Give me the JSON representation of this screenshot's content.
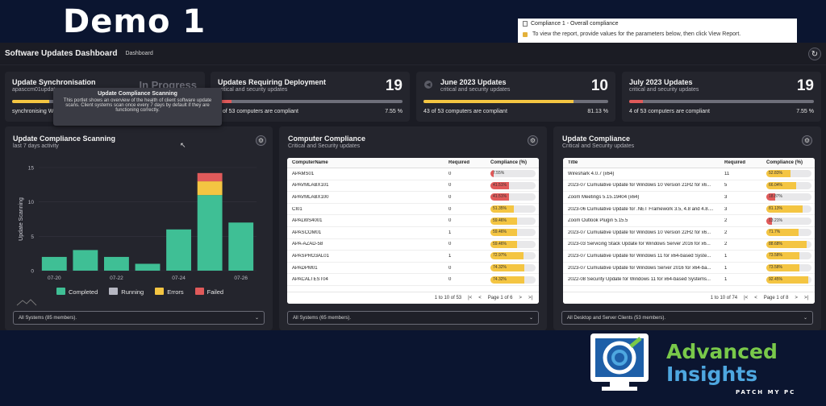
{
  "demo_title": "Demo 1",
  "report": {
    "title": "Compliance 1 - Overall compliance",
    "hint": "To view the report, provide values for the parameters below, then click View Report."
  },
  "header": {
    "title": "Software Updates Dashboard",
    "breadcrumb": "Dashboard"
  },
  "cards": [
    {
      "title": "Update Synchronisation",
      "subtitle": "apasccm01updat...",
      "status_text": "In Progress",
      "footer_left": "synchronising W...",
      "progress": 0.2,
      "bar_color": "#f4c542"
    },
    {
      "title": "Updates Requiring Deployment",
      "subtitle": "critical and security updates",
      "count": "19",
      "footer_left": "4 of 53 computers are compliant",
      "footer_right": "7.55 %",
      "progress": 0.0755,
      "bar_color": "#e05a5a"
    },
    {
      "title": "June 2023 Updates",
      "subtitle": "critical and security updates",
      "count": "10",
      "footer_left": "43 of 53 computers are compliant",
      "footer_right": "81.13 %",
      "progress": 0.8113,
      "bar_color": "#f4c542"
    },
    {
      "title": "July 2023 Updates",
      "subtitle": "critical and security updates",
      "count": "19",
      "footer_left": "4 of 53 computers are compliant",
      "footer_right": "7.55 %",
      "progress": 0.0755,
      "bar_color": "#e05a5a"
    }
  ],
  "tooltip": {
    "title": "Update Compliance Scanning",
    "body": "This portlet shows an overview of the health of client software update scans. Client systems scan once every 7 days by default if they are functioning correctly."
  },
  "scanning": {
    "title": "Update Compliance Scanning",
    "subtitle": "last 7 days activity",
    "select": "All Systems (85 members)."
  },
  "chart_data": {
    "type": "bar",
    "ylabel": "Update Scanning",
    "xlabel": "",
    "ylim": [
      0,
      15
    ],
    "yticks": [
      0,
      5,
      10,
      15
    ],
    "categories": [
      "07-20",
      "07-21",
      "07-22",
      "07-23",
      "07-24",
      "07-25",
      "07-26"
    ],
    "xtick_labels": [
      "07-20",
      "",
      "07-22",
      "",
      "07-24",
      "",
      "07-26"
    ],
    "series": [
      {
        "name": "Completed",
        "color": "#3fbf95",
        "values": [
          2,
          3,
          2,
          1,
          6,
          11,
          7
        ]
      },
      {
        "name": "Running",
        "color": "#b6b7c2",
        "values": [
          0,
          0,
          0,
          0,
          0,
          0,
          0
        ]
      },
      {
        "name": "Errors",
        "color": "#f4c542",
        "values": [
          0,
          0,
          0,
          0,
          0,
          2,
          0
        ]
      },
      {
        "name": "Failed",
        "color": "#e05a5a",
        "values": [
          0,
          0,
          0,
          0,
          0,
          1.2,
          0
        ]
      }
    ],
    "legend": "bottom"
  },
  "computer": {
    "title": "Computer Compliance",
    "subtitle": "Critical and Security updates",
    "columns": [
      "ComputerName",
      "Required",
      "Compliance (%)"
    ],
    "rows": [
      {
        "name": "APAMS01",
        "req": "0",
        "pct": 0.0755,
        "label": "7.55%"
      },
      {
        "name": "APAVMLABX101",
        "req": "0",
        "pct": 0.4151,
        "label": "41.51%"
      },
      {
        "name": "APAVMLABX100",
        "req": "0",
        "pct": 0.4151,
        "label": "41.51%"
      },
      {
        "name": "CI01",
        "req": "0",
        "pct": 0.5135,
        "label": "51.35%"
      },
      {
        "name": "APALWS4001",
        "req": "0",
        "pct": 0.5946,
        "label": "59.46%"
      },
      {
        "name": "APASCOM01",
        "req": "1",
        "pct": 0.5946,
        "label": "59.46%"
      },
      {
        "name": "APA-AZAD-58",
        "req": "0",
        "pct": 0.5946,
        "label": "59.46%"
      },
      {
        "name": "APASPRO3AL01",
        "req": "1",
        "pct": 0.7297,
        "label": "72.97%"
      },
      {
        "name": "APADPM01",
        "req": "0",
        "pct": 0.7432,
        "label": "74.32%"
      },
      {
        "name": "APACALTEST04",
        "req": "0",
        "pct": 0.7432,
        "label": "74.32%"
      }
    ],
    "range": "1 to 10 of 53",
    "page": "Page 1 of 6",
    "select": "All Systems (65 members)."
  },
  "update": {
    "title": "Update Compliance",
    "subtitle": "Critical and Security updates",
    "columns": [
      "Title",
      "Required",
      "Compliance (%)"
    ],
    "rows": [
      {
        "name": "Wireshark 4.0.7 (x64)",
        "req": "11",
        "pct": 0.5283,
        "label": "52.83%"
      },
      {
        "name": "2023-07 Cumulative Update for Windows 10 Version 21H2 for x6...",
        "req": "5",
        "pct": 0.6604,
        "label": "66.04%"
      },
      {
        "name": "Zoom Meetings 5.15.19404 (x64)",
        "req": "3",
        "pct": 0.1887,
        "label": "18.87%"
      },
      {
        "name": "2023-06 Cumulative Update for .NET Framework 3.5, 4.8 and 4.8....",
        "req": "3",
        "pct": 0.8113,
        "label": "81.13%"
      },
      {
        "name": "Zoom Outlook Plugin 5.15.5",
        "req": "2",
        "pct": 0.1321,
        "label": "13.21%"
      },
      {
        "name": "2023-07 Cumulative Update for Windows 10 Version 22H2 for x6...",
        "req": "2",
        "pct": 0.717,
        "label": "71.7%"
      },
      {
        "name": "2023-03 Servicing Stack Update for Windows Server 2016 for x6...",
        "req": "2",
        "pct": 0.8868,
        "label": "88.68%"
      },
      {
        "name": "2023-07 Cumulative Update for Windows 11 for x64-based Syste...",
        "req": "1",
        "pct": 0.7358,
        "label": "73.58%"
      },
      {
        "name": "2023-07 Cumulative Update for Windows Server 2016 for x64-ba...",
        "req": "1",
        "pct": 0.7358,
        "label": "73.58%"
      },
      {
        "name": "2022-08 Security Update for Windows 11 for x64-based Systems...",
        "req": "1",
        "pct": 0.9245,
        "label": "92.45%"
      }
    ],
    "range": "1 to 10 of 74",
    "page": "Page 1 of 8",
    "select": "All Desktop and Server Clients (53 members)."
  },
  "brand": {
    "line1": "Advanced",
    "line2": "Insights",
    "line3": "PATCH MY PC"
  }
}
